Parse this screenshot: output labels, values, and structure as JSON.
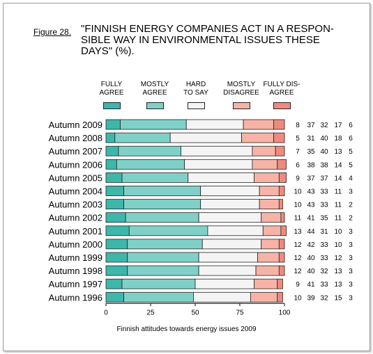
{
  "figure": {
    "label": "Figure 28.",
    "title_lines": [
      "\"FINNISH ENERGY COMPANIES ACT IN A RESPON-",
      "SIBLE WAY IN ENVIRONMENTAL ISSUES THESE",
      "DAYS\" (%)."
    ],
    "caption": "Finnish attitudes towards energy issues 2009"
  },
  "legend": [
    {
      "line1": "FULLY",
      "line2": "AGREE",
      "color": "#3cb7aa"
    },
    {
      "line1": "MOSTLY",
      "line2": "AGREE",
      "color": "#7fd1c8"
    },
    {
      "line1": "HARD",
      "line2": "TO SAY",
      "color": "#f4f4f4"
    },
    {
      "line1": "MOSTLY",
      "line2": "DISAGREE",
      "color": "#f7b3a6"
    },
    {
      "line1": "FULLY DIS-",
      "line2": "AGREE",
      "color": "#f08a7e"
    }
  ],
  "chart_data": {
    "type": "bar",
    "orientation": "horizontal",
    "stacked": true,
    "categories": [
      "Autumn 2009",
      "Autumn 2008",
      "Autumn 2007",
      "Autumn 2006",
      "Autumn 2005",
      "Autumn 2004",
      "Autumn 2003",
      "Autumn 2002",
      "Autumn 2001",
      "Autumn 2000",
      "Autumn 1999",
      "Autumn 1998",
      "Autumn 1997",
      "Autumn 1996"
    ],
    "series": [
      {
        "name": "FULLY AGREE",
        "values": [
          8,
          5,
          7,
          6,
          9,
          10,
          10,
          11,
          13,
          12,
          12,
          12,
          9,
          10
        ]
      },
      {
        "name": "MOSTLY AGREE",
        "values": [
          37,
          31,
          35,
          38,
          37,
          43,
          43,
          41,
          44,
          42,
          40,
          40,
          41,
          39
        ]
      },
      {
        "name": "HARD TO SAY",
        "values": [
          32,
          40,
          40,
          38,
          37,
          33,
          33,
          35,
          31,
          33,
          33,
          32,
          33,
          32
        ]
      },
      {
        "name": "MOSTLY DISAGREE",
        "values": [
          17,
          18,
          13,
          14,
          14,
          11,
          11,
          11,
          10,
          10,
          12,
          13,
          13,
          15
        ]
      },
      {
        "name": "FULLY DISAGREE",
        "values": [
          6,
          6,
          5,
          5,
          4,
          3,
          2,
          2,
          3,
          3,
          3,
          3,
          3,
          3
        ]
      }
    ],
    "xlim": [
      0,
      100
    ],
    "xticks": [
      0,
      25,
      50,
      75,
      100
    ],
    "grid": false,
    "legend_position": "top"
  }
}
